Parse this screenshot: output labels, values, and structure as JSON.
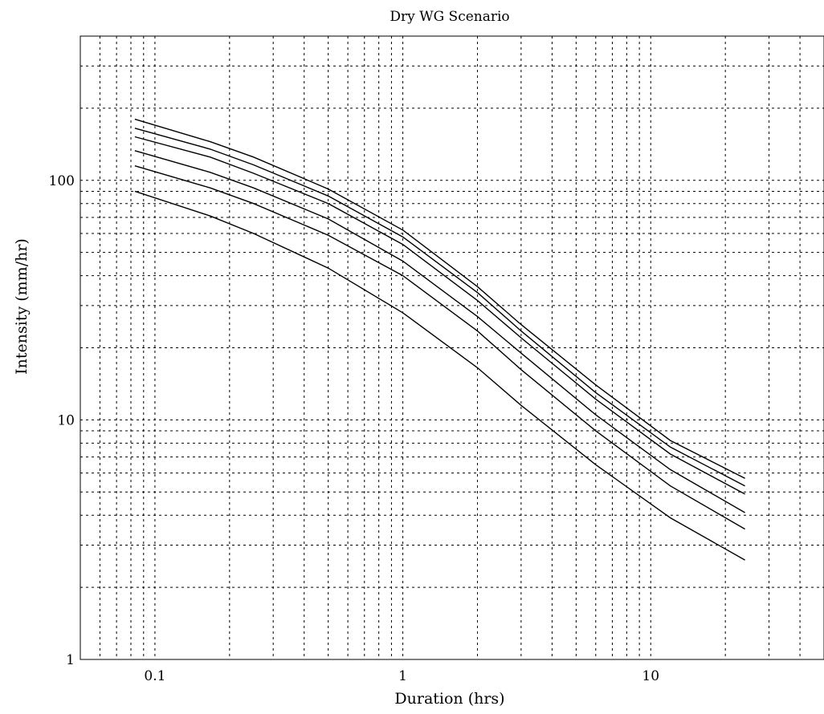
{
  "chart_data": {
    "type": "line",
    "title": "Dry WG Scenario",
    "xlabel": "Duration (hrs)",
    "ylabel": "Intensity (mm/hr)",
    "xscale": "log",
    "yscale": "log",
    "xlim": [
      0.05,
      50
    ],
    "ylim": [
      1,
      400
    ],
    "grid": true,
    "legend": "none",
    "line_color": "#000000",
    "x_tick_labels": [
      "0.1",
      "1",
      "10"
    ],
    "y_tick_labels": [
      "1",
      "10",
      "100"
    ],
    "x_ticks": [
      0.1,
      1,
      10
    ],
    "y_ticks": [
      1,
      10,
      100
    ],
    "x": [
      0.083,
      0.167,
      0.25,
      0.5,
      1,
      2,
      3,
      6,
      12,
      24
    ],
    "series": [
      {
        "values": [
          180,
          145,
          125,
          92,
          62,
          36,
          25,
          14,
          8.2,
          5.7
        ]
      },
      {
        "values": [
          165,
          135,
          116,
          86,
          58,
          34,
          23.5,
          13,
          7.7,
          5.3
        ]
      },
      {
        "values": [
          152,
          125,
          107,
          80,
          54,
          31.5,
          22,
          12.2,
          7.2,
          4.9
        ]
      },
      {
        "values": [
          133,
          108,
          93,
          69,
          46,
          27,
          19,
          10.5,
          6.2,
          4.1
        ]
      },
      {
        "values": [
          115,
          93,
          80,
          59,
          40,
          23.5,
          16.2,
          9.0,
          5.3,
          3.5
        ]
      },
      {
        "values": [
          90,
          71,
          60,
          43,
          28,
          16.5,
          11.5,
          6.5,
          3.9,
          2.6
        ]
      }
    ]
  }
}
